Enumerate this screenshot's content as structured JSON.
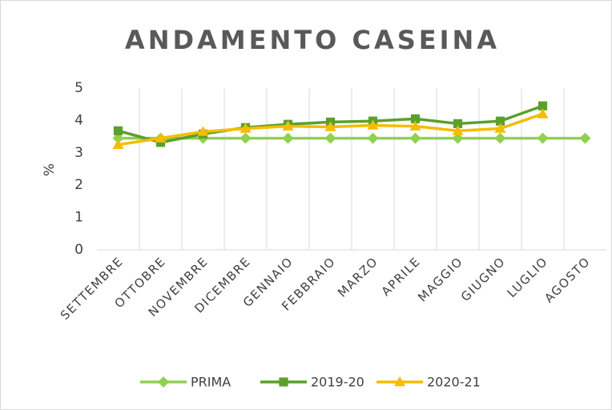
{
  "chart_data": {
    "type": "line",
    "title": "ANDAMENTO CASEINA",
    "y_label": "%",
    "categories": [
      "SETTEMBRE",
      "OTTOBRE",
      "NOVEMBRE",
      "DICEMBRE",
      "GENNAIO",
      "FEBBRAIO",
      "MARZO",
      "APRILE",
      "MAGGIO",
      "GIUGNO",
      "LUGLIO",
      "AGOSTO"
    ],
    "series": [
      {
        "name": "PRIMA",
        "color": "#92d050",
        "marker": "diamond",
        "values": [
          3.45,
          3.45,
          3.45,
          3.45,
          3.45,
          3.45,
          3.45,
          3.45,
          3.45,
          3.45,
          3.45,
          3.45
        ]
      },
      {
        "name": "2019-20",
        "color": "#5aa02c",
        "marker": "square",
        "values": [
          3.68,
          3.32,
          3.58,
          3.78,
          3.88,
          3.95,
          3.98,
          4.05,
          3.9,
          3.98,
          4.45,
          null
        ]
      },
      {
        "name": "2020-21",
        "color": "#f5bc00",
        "marker": "triangle",
        "values": [
          3.25,
          3.45,
          3.65,
          3.75,
          3.82,
          3.8,
          3.85,
          3.82,
          3.68,
          3.75,
          4.2,
          null
        ]
      }
    ],
    "ylim": [
      0,
      5
    ],
    "yticks": [
      0,
      1,
      2,
      3,
      4,
      5
    ],
    "legend": "bottom"
  }
}
